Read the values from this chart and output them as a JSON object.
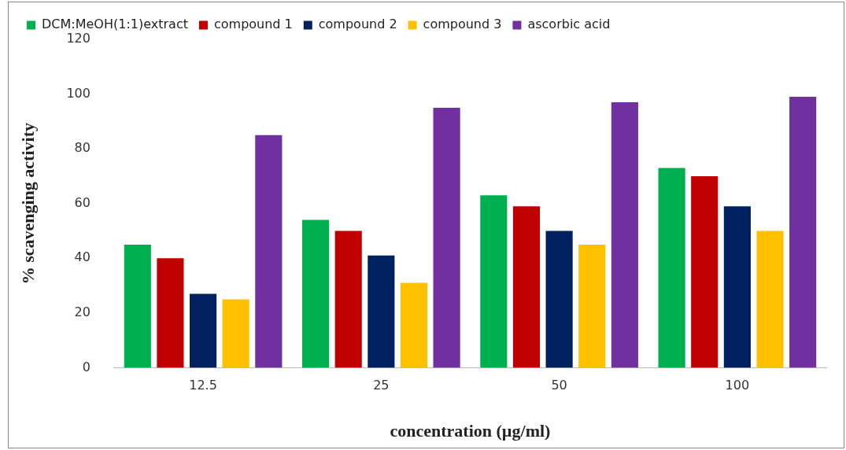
{
  "chart_data": {
    "type": "bar",
    "xlabel": "concentration (µg/ml)",
    "ylabel": "% scavenging activity",
    "categories": [
      "12.5",
      "25",
      "50",
      "100"
    ],
    "series": [
      {
        "name": "DCM:MeOH(1:1)extract",
        "color": "#00b050",
        "values": [
          45,
          54,
          63,
          73
        ]
      },
      {
        "name": "compound 1",
        "color": "#c00000",
        "values": [
          40,
          50,
          59,
          70
        ]
      },
      {
        "name": "compound 2",
        "color": "#002060",
        "values": [
          27,
          41,
          50,
          59
        ]
      },
      {
        "name": "compound 3",
        "color": "#ffc000",
        "values": [
          25,
          31,
          45,
          50
        ]
      },
      {
        "name": "ascorbic acid",
        "color": "#7030a0",
        "values": [
          85,
          95,
          97,
          99
        ]
      }
    ],
    "ylim": [
      0,
      120
    ],
    "yticks": [
      0,
      20,
      40,
      60,
      80,
      100,
      120
    ],
    "grid": false,
    "legend": "top"
  }
}
